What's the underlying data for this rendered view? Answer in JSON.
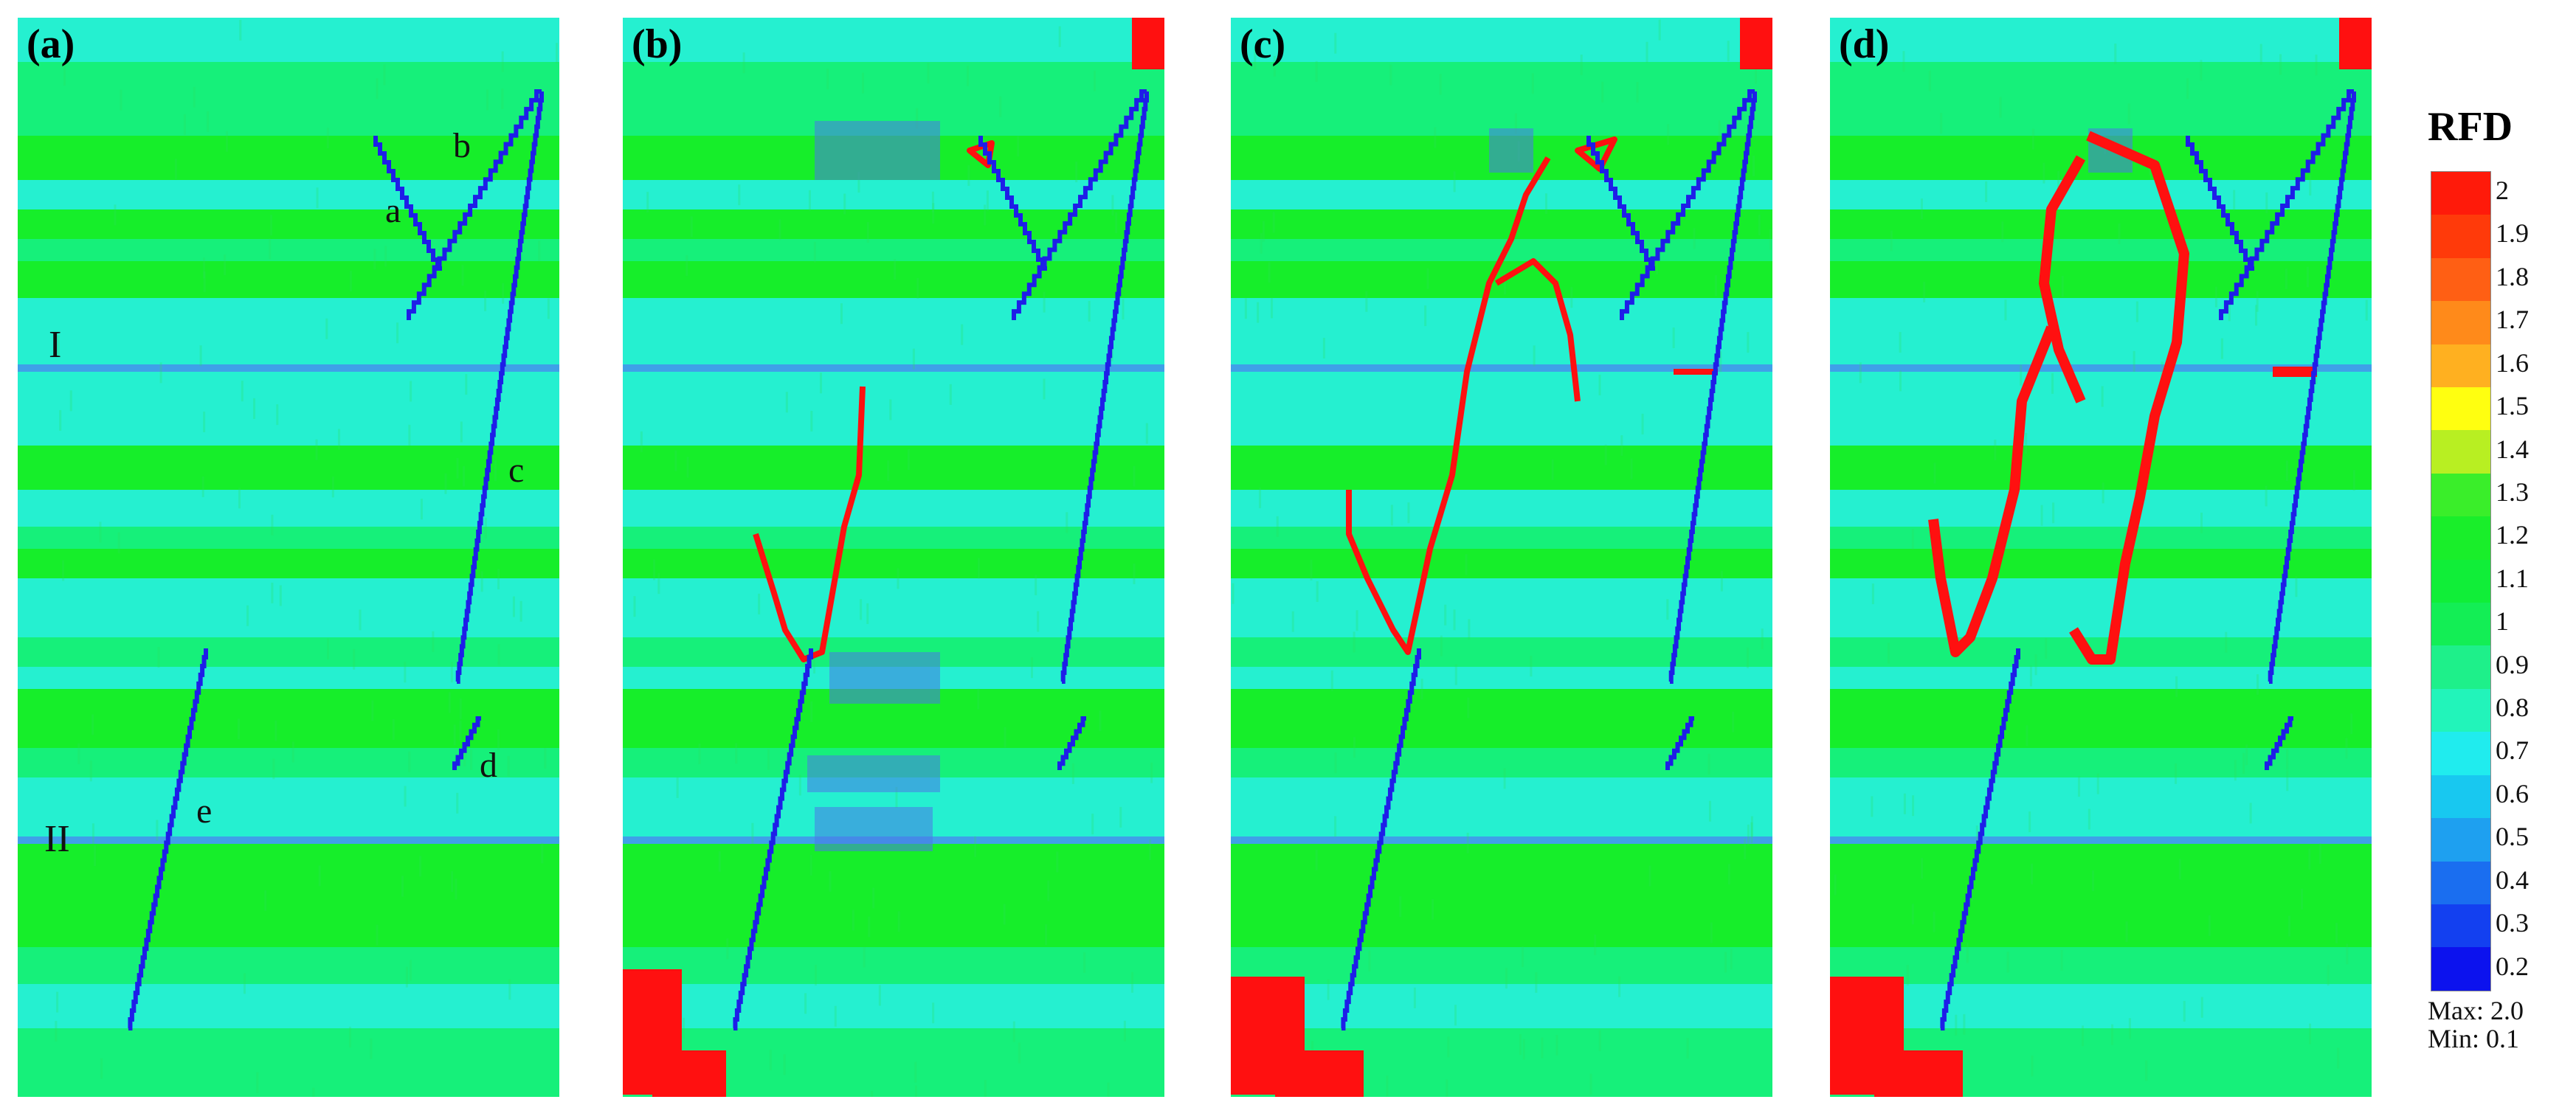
{
  "panels": [
    {
      "label": "(a)",
      "fractures": [
        "a",
        "b",
        "c",
        "d",
        "e"
      ],
      "regions": [
        "I",
        "II"
      ]
    },
    {
      "label": "(b)"
    },
    {
      "label": "(c)"
    },
    {
      "label": "(d)"
    }
  ],
  "legend": {
    "title": "RFD",
    "ticks": [
      "2",
      "1.9",
      "1.8",
      "1.7",
      "1.6",
      "1.5",
      "1.4",
      "1.3",
      "1.2",
      "1.1",
      "1",
      "0.9",
      "0.8",
      "0.7",
      "0.6",
      "0.5",
      "0.4",
      "0.3",
      "0.2"
    ],
    "colors": [
      "#ff1a0a",
      "#ff3a0a",
      "#ff5f14",
      "#ff8a1a",
      "#ffb020",
      "#ffff10",
      "#b8ef22",
      "#3aee2a",
      "#19ee2a",
      "#10ee38",
      "#13ee55",
      "#1ef08a",
      "#22f4ba",
      "#20ecee",
      "#18c8f0",
      "#1ea0f0",
      "#1a6ef0",
      "#1340f0",
      "#0c12ee"
    ],
    "max": "Max:  2.0",
    "min": "Min:  0.1"
  },
  "colors": {
    "base_green": "#16f07a",
    "bright_green": "#16ee2a",
    "cyan": "#25f0d0",
    "light_blue": "#3fa0e8",
    "fracture_blue": "#1e1ee8",
    "failure_red": "#ff1010"
  }
}
